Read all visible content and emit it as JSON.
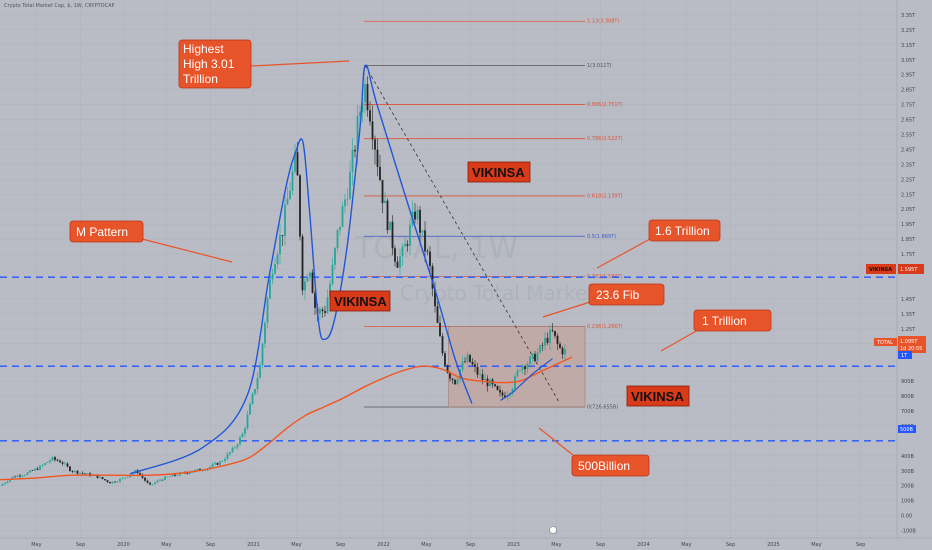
{
  "header": {
    "symbol_title": "Crypto Total Market Cap, $, 1W, CRYPTOCAP"
  },
  "watermark": {
    "symbol": "TOTAL, 1W",
    "name": "Crypto Total Market Cap"
  },
  "colors": {
    "background": "#b9bcc4",
    "up_candle": "#26a69a",
    "down_candle": "#222222",
    "ma_line": "#f2551f",
    "blue_line": "#2157d6",
    "dashed_level": "#2457ff",
    "callout_fill": "#e8542a",
    "vikinsa_fill": "#d83a1a",
    "fib_red": "#e0533a",
    "fib_blue": "#3a59c8",
    "zone_fill": "#c69a92"
  },
  "annotations": {
    "highest_high": "Highest\nHigh 3.01\nTrillion",
    "m_pattern": "M Pattern",
    "trillion_16": "1.6 Trillion",
    "fib_236": "23.6 Fib",
    "trillion_1": "1 Trillion",
    "billion_500": "500Billion",
    "vikinsa_1": "VIKINSA",
    "vikinsa_2": "VIKINSA",
    "vikinsa_3": "VIKINSA"
  },
  "price_axis": {
    "marker_vikinsa": "VIKINSA",
    "marker_1595": "1.595T",
    "marker_total": "TOTAL",
    "marker_total_value": "1.095T",
    "marker_countdown": "1d 20:55",
    "marker_1t": "1T",
    "marker_500b": "500B",
    "ticks": [
      {
        "v": 3.35,
        "label": "3.35T"
      },
      {
        "v": 3.25,
        "label": "3.25T"
      },
      {
        "v": 3.15,
        "label": "3.15T"
      },
      {
        "v": 3.05,
        "label": "3.05T"
      },
      {
        "v": 2.95,
        "label": "2.95T"
      },
      {
        "v": 2.85,
        "label": "2.85T"
      },
      {
        "v": 2.75,
        "label": "2.75T"
      },
      {
        "v": 2.65,
        "label": "2.65T"
      },
      {
        "v": 2.55,
        "label": "2.55T"
      },
      {
        "v": 2.45,
        "label": "2.45T"
      },
      {
        "v": 2.35,
        "label": "2.35T"
      },
      {
        "v": 2.25,
        "label": "2.25T"
      },
      {
        "v": 2.15,
        "label": "2.15T"
      },
      {
        "v": 2.05,
        "label": "2.05T"
      },
      {
        "v": 1.95,
        "label": "1.95T"
      },
      {
        "v": 1.85,
        "label": "1.85T"
      },
      {
        "v": 1.75,
        "label": "1.75T"
      },
      {
        "v": 1.65,
        "label": "1.65T"
      },
      {
        "v": 1.45,
        "label": "1.45T"
      },
      {
        "v": 1.35,
        "label": "1.35T"
      },
      {
        "v": 1.25,
        "label": "1.25T"
      },
      {
        "v": 1.15,
        "label": "1.15T"
      },
      {
        "v": 0.9,
        "label": "900B"
      },
      {
        "v": 0.8,
        "label": "800B"
      },
      {
        "v": 0.7,
        "label": "700B"
      },
      {
        "v": 0.6,
        "label": "600B"
      },
      {
        "v": 0.4,
        "label": "400B"
      },
      {
        "v": 0.3,
        "label": "300B"
      },
      {
        "v": 0.2,
        "label": "200B"
      },
      {
        "v": 0.1,
        "label": "100B"
      },
      {
        "v": 0.0,
        "label": "0.00"
      },
      {
        "v": -0.1,
        "label": "-100B"
      }
    ]
  },
  "time_axis": [
    {
      "t": 2019.33,
      "label": "May"
    },
    {
      "t": 2019.67,
      "label": "Sep"
    },
    {
      "t": 2020.0,
      "label": "2020"
    },
    {
      "t": 2020.33,
      "label": "May"
    },
    {
      "t": 2020.67,
      "label": "Sep"
    },
    {
      "t": 2021.0,
      "label": "2021"
    },
    {
      "t": 2021.33,
      "label": "May"
    },
    {
      "t": 2021.67,
      "label": "Sep"
    },
    {
      "t": 2022.0,
      "label": "2022"
    },
    {
      "t": 2022.33,
      "label": "May"
    },
    {
      "t": 2022.67,
      "label": "Sep"
    },
    {
      "t": 2023.0,
      "label": "2023"
    },
    {
      "t": 2023.33,
      "label": "May"
    },
    {
      "t": 2023.67,
      "label": "Sep"
    },
    {
      "t": 2024.0,
      "label": "2024"
    },
    {
      "t": 2024.33,
      "label": "May"
    },
    {
      "t": 2024.67,
      "label": "Sep"
    },
    {
      "t": 2025.0,
      "label": "2025"
    },
    {
      "t": 2025.33,
      "label": "May"
    },
    {
      "t": 2025.67,
      "label": "Sep"
    }
  ],
  "chart_data": {
    "type": "candlestick",
    "title": "Crypto Total Market Cap, $, 1W, CRYPTOCAP",
    "y_unit": "USD trillions",
    "ylim": [
      -0.15,
      3.45
    ],
    "xlim": [
      2019.05,
      2025.95
    ],
    "horizontal_levels": [
      {
        "value": 1.595,
        "label": "1.6 Trillion"
      },
      {
        "value": 1.0,
        "label": "1 Trillion"
      },
      {
        "value": 0.5,
        "label": "500Billion"
      }
    ],
    "fib_levels": [
      {
        "ratio": 1.13,
        "label": "1.13(3.308T)",
        "value": 3.308,
        "color": "#e0533a"
      },
      {
        "ratio": 1.0,
        "label": "1(3.011T)",
        "value": 3.011,
        "color": "#555555"
      },
      {
        "ratio": 0.886,
        "label": "0.886(2.751T)",
        "value": 2.751,
        "color": "#e0533a"
      },
      {
        "ratio": 0.786,
        "label": "0.786(2.522T)",
        "value": 2.522,
        "color": "#e0533a"
      },
      {
        "ratio": 0.618,
        "label": "0.618(2.139T)",
        "value": 2.139,
        "color": "#e0533a"
      },
      {
        "ratio": 0.5,
        "label": "0.5(1.869T)",
        "value": 1.869,
        "color": "#3a59c8"
      },
      {
        "ratio": 0.382,
        "label": "0.382(1.599T)",
        "value": 1.599,
        "color": "#e0533a"
      },
      {
        "ratio": 0.236,
        "label": "0.236(1.266T)",
        "value": 1.266,
        "color": "#e0533a"
      },
      {
        "ratio": 0.0,
        "label": "0(726.655B)",
        "value": 0.7267,
        "color": "#555555"
      }
    ],
    "fib_x_range": [
      2021.85,
      2023.55
    ],
    "range_box": {
      "x0": 2022.5,
      "x1": 2023.55,
      "y0": 0.7267,
      "y1": 1.266
    },
    "trend_line": [
      [
        2021.86,
        3.011
      ],
      [
        2023.35,
        0.76
      ]
    ],
    "m_pattern_path": [
      [
        2020.05,
        0.28
      ],
      [
        2020.6,
        0.45
      ],
      [
        2020.95,
        0.8
      ],
      [
        2021.12,
        1.6
      ],
      [
        2021.25,
        2.2
      ],
      [
        2021.32,
        2.42
      ],
      [
        2021.38,
        2.5
      ],
      [
        2021.43,
        2.05
      ],
      [
        2021.5,
        1.3
      ],
      [
        2021.55,
        1.18
      ],
      [
        2021.62,
        1.3
      ],
      [
        2021.72,
        1.8
      ],
      [
        2021.82,
        2.6
      ],
      [
        2021.86,
        3.011
      ],
      [
        2021.95,
        2.75
      ],
      [
        2022.2,
        2.05
      ],
      [
        2022.4,
        1.5
      ],
      [
        2022.55,
        1.05
      ],
      [
        2022.68,
        0.75
      ]
    ],
    "blue_curve_2": [
      [
        2022.9,
        0.77
      ],
      [
        2023.0,
        0.83
      ],
      [
        2023.15,
        0.95
      ],
      [
        2023.3,
        1.05
      ]
    ],
    "ma_line": [
      [
        2019.05,
        0.24
      ],
      [
        2019.3,
        0.25
      ],
      [
        2019.6,
        0.27
      ],
      [
        2019.9,
        0.27
      ],
      [
        2020.2,
        0.27
      ],
      [
        2020.5,
        0.29
      ],
      [
        2020.75,
        0.33
      ],
      [
        2020.95,
        0.38
      ],
      [
        2021.1,
        0.47
      ],
      [
        2021.25,
        0.58
      ],
      [
        2021.4,
        0.67
      ],
      [
        2021.55,
        0.73
      ],
      [
        2021.7,
        0.79
      ],
      [
        2021.85,
        0.86
      ],
      [
        2022.0,
        0.92
      ],
      [
        2022.15,
        0.97
      ],
      [
        2022.3,
        1.0
      ],
      [
        2022.45,
        0.98
      ],
      [
        2022.6,
        0.92
      ],
      [
        2022.75,
        0.9
      ],
      [
        2022.9,
        0.89
      ],
      [
        2023.05,
        0.9
      ],
      [
        2023.2,
        0.96
      ],
      [
        2023.35,
        1.02
      ],
      [
        2023.45,
        1.06
      ]
    ],
    "close_series": [
      [
        2019.05,
        0.2
      ],
      [
        2019.15,
        0.26
      ],
      [
        2019.25,
        0.28
      ],
      [
        2019.35,
        0.32
      ],
      [
        2019.45,
        0.38
      ],
      [
        2019.52,
        0.36
      ],
      [
        2019.6,
        0.3
      ],
      [
        2019.7,
        0.28
      ],
      [
        2019.8,
        0.26
      ],
      [
        2019.9,
        0.22
      ],
      [
        2020.0,
        0.25
      ],
      [
        2020.1,
        0.3
      ],
      [
        2020.2,
        0.2
      ],
      [
        2020.28,
        0.24
      ],
      [
        2020.35,
        0.26
      ],
      [
        2020.45,
        0.28
      ],
      [
        2020.55,
        0.3
      ],
      [
        2020.65,
        0.32
      ],
      [
        2020.75,
        0.36
      ],
      [
        2020.85,
        0.45
      ],
      [
        2020.92,
        0.55
      ],
      [
        2021.0,
        0.82
      ],
      [
        2021.05,
        1.0
      ],
      [
        2021.1,
        1.4
      ],
      [
        2021.15,
        1.7
      ],
      [
        2021.22,
        1.9
      ],
      [
        2021.28,
        2.2
      ],
      [
        2021.33,
        2.4
      ],
      [
        2021.38,
        1.5
      ],
      [
        2021.43,
        1.7
      ],
      [
        2021.48,
        1.35
      ],
      [
        2021.55,
        1.38
      ],
      [
        2021.6,
        1.6
      ],
      [
        2021.65,
        1.9
      ],
      [
        2021.7,
        2.1
      ],
      [
        2021.75,
        2.3
      ],
      [
        2021.8,
        2.6
      ],
      [
        2021.85,
        2.9
      ],
      [
        2021.9,
        2.7
      ],
      [
        2021.95,
        2.4
      ],
      [
        2022.0,
        2.1
      ],
      [
        2022.05,
        1.9
      ],
      [
        2022.1,
        1.7
      ],
      [
        2022.15,
        1.75
      ],
      [
        2022.2,
        1.9
      ],
      [
        2022.25,
        2.05
      ],
      [
        2022.3,
        1.85
      ],
      [
        2022.35,
        1.7
      ],
      [
        2022.4,
        1.35
      ],
      [
        2022.45,
        1.1
      ],
      [
        2022.5,
        0.95
      ],
      [
        2022.55,
        0.9
      ],
      [
        2022.6,
        1.0
      ],
      [
        2022.65,
        1.05
      ],
      [
        2022.7,
        0.98
      ],
      [
        2022.75,
        0.92
      ],
      [
        2022.82,
        0.88
      ],
      [
        2022.9,
        0.8
      ],
      [
        2022.95,
        0.82
      ],
      [
        2023.0,
        0.88
      ],
      [
        2023.05,
        1.0
      ],
      [
        2023.1,
        1.02
      ],
      [
        2023.15,
        1.05
      ],
      [
        2023.2,
        1.1
      ],
      [
        2023.25,
        1.18
      ],
      [
        2023.3,
        1.22
      ],
      [
        2023.35,
        1.12
      ],
      [
        2023.4,
        1.095
      ]
    ]
  }
}
